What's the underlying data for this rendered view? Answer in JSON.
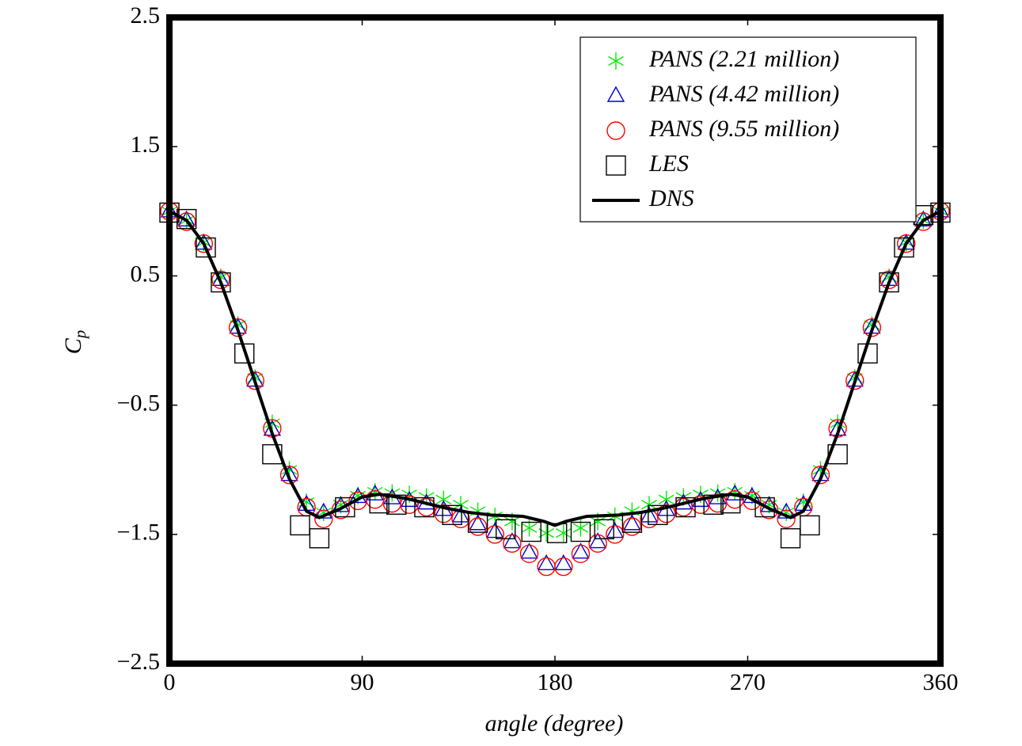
{
  "chart_data": {
    "type": "scatter",
    "xlabel": "angle (degree)",
    "ylabel": {
      "main": "C",
      "sub": "p"
    },
    "xlim": [
      0,
      360
    ],
    "ylim": [
      -2.5,
      2.5
    ],
    "xticks": [
      0,
      90,
      180,
      270,
      360
    ],
    "yticks": [
      2.5,
      1.5,
      0.5,
      {
        "value": -0.5,
        "label": "−0.5"
      },
      {
        "value": -1.5,
        "label": "−1.5"
      },
      {
        "value": -2.5,
        "label": "−2.5"
      }
    ],
    "legend": "upper right",
    "series": [
      {
        "name": "PANS (2.21 million)",
        "color": "#00ee00",
        "marker": "star",
        "x": [
          0,
          8,
          16,
          24,
          32,
          40,
          48,
          56,
          64,
          72,
          80,
          88,
          96,
          104,
          112,
          120,
          128,
          136,
          144,
          152,
          160,
          168,
          176,
          184,
          192,
          200,
          208,
          216,
          224,
          232,
          240,
          248,
          256,
          264,
          272,
          280,
          288,
          296,
          304,
          312,
          320,
          328,
          336,
          344,
          352,
          360
        ],
        "values": [
          1.0,
          0.93,
          0.76,
          0.49,
          0.12,
          -0.29,
          -0.64,
          -1.0,
          -1.25,
          -1.33,
          -1.27,
          -1.2,
          -1.17,
          -1.18,
          -1.19,
          -1.21,
          -1.23,
          -1.27,
          -1.32,
          -1.36,
          -1.4,
          -1.45,
          -1.49,
          -1.49,
          -1.45,
          -1.4,
          -1.36,
          -1.32,
          -1.27,
          -1.23,
          -1.21,
          -1.19,
          -1.18,
          -1.17,
          -1.2,
          -1.27,
          -1.33,
          -1.25,
          -1.0,
          -0.64,
          -0.29,
          0.12,
          0.49,
          0.76,
          0.93,
          1.0
        ]
      },
      {
        "name": "PANS (4.42 million)",
        "color": "#0000cc",
        "marker": "triangle",
        "x": [
          0,
          8,
          16,
          24,
          32,
          40,
          48,
          56,
          64,
          72,
          80,
          88,
          96,
          104,
          112,
          120,
          128,
          136,
          144,
          152,
          160,
          168,
          176,
          184,
          192,
          200,
          208,
          216,
          224,
          232,
          240,
          248,
          256,
          264,
          272,
          280,
          288,
          296,
          304,
          312,
          320,
          328,
          336,
          344,
          352,
          360
        ],
        "values": [
          1.0,
          0.93,
          0.75,
          0.47,
          0.1,
          -0.31,
          -0.69,
          -1.04,
          -1.27,
          -1.33,
          -1.28,
          -1.21,
          -1.19,
          -1.22,
          -1.24,
          -1.26,
          -1.31,
          -1.36,
          -1.42,
          -1.48,
          -1.56,
          -1.64,
          -1.73,
          -1.73,
          -1.64,
          -1.56,
          -1.48,
          -1.42,
          -1.36,
          -1.31,
          -1.26,
          -1.24,
          -1.22,
          -1.19,
          -1.21,
          -1.28,
          -1.33,
          -1.27,
          -1.04,
          -0.69,
          -0.31,
          0.1,
          0.47,
          0.75,
          0.93,
          1.0
        ]
      },
      {
        "name": "PANS (9.55 million)",
        "color": "#ff0000",
        "marker": "circle",
        "x": [
          0,
          8,
          16,
          24,
          32,
          40,
          48,
          56,
          64,
          72,
          80,
          88,
          96,
          104,
          112,
          120,
          128,
          136,
          144,
          152,
          160,
          168,
          176,
          184,
          192,
          200,
          208,
          216,
          224,
          232,
          240,
          248,
          256,
          264,
          272,
          280,
          288,
          296,
          304,
          312,
          320,
          328,
          336,
          344,
          352,
          360
        ],
        "values": [
          1.0,
          0.92,
          0.75,
          0.47,
          0.1,
          -0.31,
          -0.68,
          -1.04,
          -1.29,
          -1.38,
          -1.31,
          -1.24,
          -1.23,
          -1.26,
          -1.27,
          -1.29,
          -1.34,
          -1.38,
          -1.44,
          -1.5,
          -1.57,
          -1.65,
          -1.75,
          -1.75,
          -1.65,
          -1.57,
          -1.5,
          -1.44,
          -1.38,
          -1.34,
          -1.29,
          -1.27,
          -1.26,
          -1.23,
          -1.24,
          -1.31,
          -1.38,
          -1.29,
          -1.04,
          -0.68,
          -0.31,
          0.1,
          0.47,
          0.75,
          0.92,
          1.0
        ]
      },
      {
        "name": "LES",
        "color": "#000000",
        "marker": "square",
        "x": [
          0,
          8,
          17,
          24,
          35,
          48,
          61,
          70,
          82,
          98,
          106,
          119,
          132,
          144,
          157,
          169,
          181,
          192,
          203,
          216,
          228,
          241,
          254,
          262,
          278,
          290,
          299,
          312,
          326,
          336,
          343,
          352,
          360
        ],
        "values": [
          0.99,
          0.94,
          0.72,
          0.45,
          -0.1,
          -0.88,
          -1.43,
          -1.53,
          -1.29,
          -1.26,
          -1.27,
          -1.29,
          -1.35,
          -1.41,
          -1.46,
          -1.48,
          -1.49,
          -1.48,
          -1.46,
          -1.41,
          -1.35,
          -1.29,
          -1.27,
          -1.26,
          -1.29,
          -1.53,
          -1.43,
          -0.88,
          -0.1,
          0.45,
          0.72,
          0.97,
          0.99
        ]
      },
      {
        "name": "DNS",
        "color": "#000000",
        "marker": "line",
        "x": [
          0,
          8,
          16,
          24,
          32,
          40,
          48,
          56,
          64,
          70,
          80,
          90,
          98,
          110,
          120,
          130,
          140,
          150,
          165,
          175,
          180,
          185,
          195,
          210,
          220,
          230,
          240,
          250,
          262,
          270,
          280,
          290,
          296,
          304,
          312,
          320,
          328,
          336,
          344,
          352,
          360
        ],
        "values": [
          1.0,
          0.93,
          0.75,
          0.45,
          0.08,
          -0.32,
          -0.72,
          -1.07,
          -1.32,
          -1.37,
          -1.3,
          -1.21,
          -1.19,
          -1.22,
          -1.26,
          -1.3,
          -1.33,
          -1.35,
          -1.36,
          -1.4,
          -1.43,
          -1.4,
          -1.36,
          -1.35,
          -1.33,
          -1.3,
          -1.26,
          -1.22,
          -1.19,
          -1.21,
          -1.3,
          -1.37,
          -1.32,
          -1.07,
          -0.72,
          -0.32,
          0.08,
          0.45,
          0.75,
          0.93,
          1.0
        ]
      }
    ]
  }
}
